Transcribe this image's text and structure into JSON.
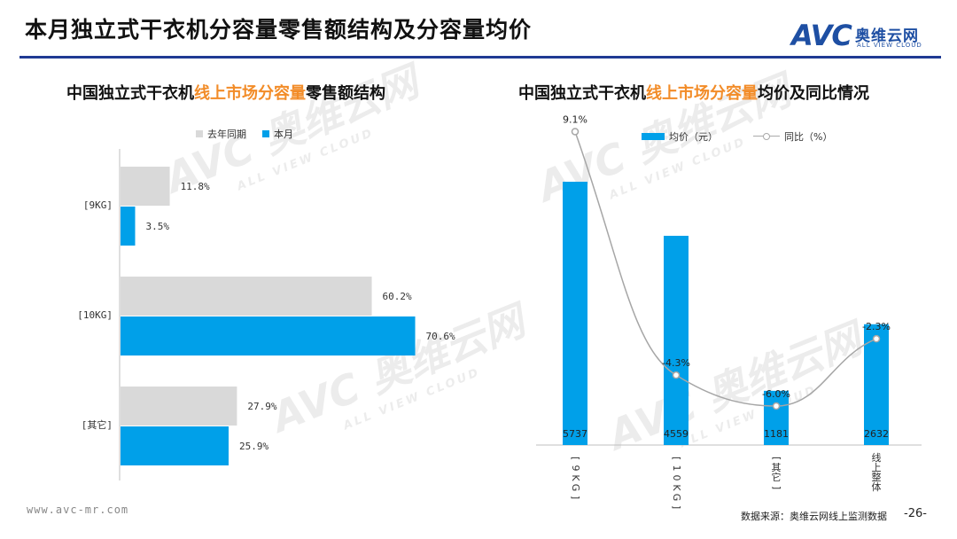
{
  "page": {
    "title": "本月独立式干衣机分容量零售额结构及分容量均价",
    "logo": {
      "mark": "AVC",
      "cn": "奥维云网",
      "en": "ALL VIEW CLOUD"
    },
    "footer_url": "www.avc-mr.com",
    "footer_source": "数据来源：奥维云网线上监测数据",
    "footer_page": "-26-",
    "watermark": {
      "mark": "AVC 奥维云网",
      "en": "ALL VIEW CLOUD"
    }
  },
  "left_title": {
    "pre": "中国独立式干衣机",
    "hl": "线上市场分容量",
    "post": "零售额结构"
  },
  "right_title": {
    "pre": "中国独立式干衣机",
    "hl": "线上市场分容量",
    "post": "均价及同比情况"
  },
  "chart_data": [
    {
      "type": "bar",
      "orientation": "horizontal",
      "categories": [
        "[9KG]",
        "[10KG]",
        "[其它]"
      ],
      "series": [
        {
          "name": "去年同期",
          "values": [
            11.8,
            60.2,
            27.9
          ],
          "labels": [
            "11.8%",
            "60.2%",
            "27.9%"
          ],
          "color": "#d9d9d9"
        },
        {
          "name": "本月",
          "values": [
            3.5,
            70.6,
            25.9
          ],
          "labels": [
            "3.5%",
            "70.6%",
            "25.9%"
          ],
          "color": "#00a0e9"
        }
      ],
      "xlim": [
        0,
        80
      ]
    },
    {
      "type": "bar",
      "categories": [
        "[9KG]",
        "[10KG]",
        "[其它]",
        "线上整体"
      ],
      "series": [
        {
          "name": "均价（元）",
          "values": [
            5737,
            4559,
            1181,
            2632
          ],
          "labels": [
            "5737",
            "4559",
            "1181",
            "2632"
          ],
          "color": "#00a0e9"
        },
        {
          "name": "同比（%）",
          "type": "line",
          "values": [
            9.1,
            -4.3,
            -6.0,
            -2.3
          ],
          "labels": [
            "9.1%",
            "-4.3%",
            "-6.0%",
            "-2.3%"
          ],
          "color": "#a6a6a6"
        }
      ]
    }
  ]
}
